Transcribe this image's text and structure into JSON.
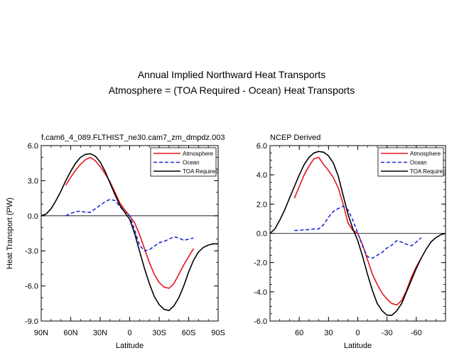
{
  "figure": {
    "title_line1": "Annual Implied Northward Heat Transports",
    "title_line2": "Atmosphere = (TOA Required - Ocean) Heat Transports"
  },
  "chart_data": [
    {
      "type": "line",
      "panel_title": "f.cam6_4_089.FLTHIST_ne30.cam7_zm_dmpdz.003",
      "xlabel": "Latitude",
      "ylabel": "Heat Transport (PW)",
      "xlim": [
        90,
        -90
      ],
      "ylim": [
        -9,
        6
      ],
      "xticks": [
        90,
        60,
        30,
        0,
        -30,
        -60,
        -90
      ],
      "xtick_labels": [
        "90N",
        "60N",
        "30N",
        "0",
        "30S",
        "60S",
        "90S"
      ],
      "yticks": [
        6,
        3,
        0,
        -3,
        -6,
        -9
      ],
      "ytick_labels": [
        "6.0",
        "3.0",
        "0.0",
        "-3.0",
        "-6.0",
        "-9.0"
      ],
      "legend": [
        "Atmosphere",
        "Ocean",
        "TOA Required"
      ],
      "legend_position": "top-right",
      "zero_line": true,
      "series": [
        {
          "name": "Atmosphere",
          "color": "#e8141e",
          "dash": "solid",
          "x": [
            65,
            60,
            55,
            50,
            45,
            40,
            35,
            30,
            25,
            20,
            15,
            10,
            5,
            0,
            -5,
            -10,
            -15,
            -20,
            -25,
            -30,
            -35,
            -40,
            -45,
            -50,
            -55,
            -60,
            -65
          ],
          "y": [
            2.6,
            3.3,
            3.9,
            4.4,
            4.8,
            5.0,
            4.7,
            4.2,
            3.6,
            2.9,
            2.0,
            1.1,
            0.5,
            0.0,
            -0.6,
            -1.6,
            -2.8,
            -4.0,
            -5.0,
            -5.7,
            -6.1,
            -6.2,
            -5.8,
            -5.0,
            -4.2,
            -3.5,
            -2.8
          ]
        },
        {
          "name": "Ocean",
          "color": "#1e2ad8",
          "dash": "dashed",
          "x": [
            65,
            60,
            55,
            50,
            45,
            40,
            35,
            30,
            25,
            20,
            15,
            10,
            5,
            0,
            -5,
            -10,
            -15,
            -20,
            -25,
            -30,
            -35,
            -40,
            -45,
            -50,
            -55,
            -60,
            -65
          ],
          "y": [
            0.0,
            0.2,
            0.35,
            0.4,
            0.3,
            0.3,
            0.6,
            0.9,
            1.2,
            1.4,
            1.3,
            0.8,
            0.3,
            0.0,
            -1.2,
            -2.5,
            -3.0,
            -2.9,
            -2.6,
            -2.3,
            -2.2,
            -2.0,
            -1.8,
            -1.9,
            -2.1,
            -2.0,
            -1.9
          ]
        },
        {
          "name": "TOA Required",
          "color": "#000000",
          "dash": "solid",
          "x": [
            90,
            85,
            80,
            75,
            70,
            65,
            60,
            55,
            50,
            45,
            40,
            35,
            30,
            25,
            20,
            15,
            10,
            5,
            0,
            -5,
            -10,
            -15,
            -20,
            -25,
            -30,
            -35,
            -40,
            -45,
            -50,
            -55,
            -60,
            -65,
            -70,
            -75,
            -80,
            -85,
            -90
          ],
          "y": [
            0.0,
            0.15,
            0.6,
            1.3,
            2.1,
            3.0,
            3.8,
            4.5,
            5.0,
            5.25,
            5.3,
            5.1,
            4.6,
            3.8,
            2.8,
            1.8,
            0.9,
            0.3,
            -0.3,
            -1.5,
            -3.0,
            -4.5,
            -5.8,
            -6.9,
            -7.6,
            -8.0,
            -8.1,
            -7.7,
            -7.0,
            -6.0,
            -4.8,
            -3.8,
            -3.1,
            -2.7,
            -2.5,
            -2.4,
            -2.4
          ]
        }
      ]
    },
    {
      "type": "line",
      "panel_title": "NCEP Derived",
      "xlabel": "Latitude",
      "ylabel": "",
      "xlim": [
        90,
        -90
      ],
      "ylim": [
        -6,
        6
      ],
      "xticks": [
        60,
        30,
        0,
        -30,
        -60
      ],
      "xtick_labels": [
        "60",
        "30",
        "0",
        "-30",
        "-60"
      ],
      "yticks": [
        6,
        4,
        2,
        0,
        -2,
        -4,
        -6
      ],
      "ytick_labels": [
        "6.0",
        "4.0",
        "2.0",
        "0.0",
        "-2.0",
        "-4.0",
        "-6.0"
      ],
      "legend": [
        "Atmosphere",
        "Ocean",
        "TOA Required"
      ],
      "legend_position": "top-right",
      "zero_line": true,
      "series": [
        {
          "name": "Atmosphere",
          "color": "#e8141e",
          "dash": "solid",
          "x": [
            65,
            60,
            55,
            50,
            45,
            40,
            35,
            30,
            25,
            20,
            15,
            10,
            5,
            0,
            -5,
            -10,
            -15,
            -20,
            -25,
            -30,
            -35,
            -40,
            -45,
            -50,
            -55,
            -60,
            -65
          ],
          "y": [
            2.4,
            3.2,
            4.0,
            4.6,
            5.1,
            5.2,
            4.7,
            4.3,
            3.8,
            3.1,
            2.0,
            0.7,
            0.2,
            0.0,
            -0.8,
            -1.8,
            -2.8,
            -3.5,
            -4.1,
            -4.5,
            -4.8,
            -4.9,
            -4.6,
            -3.9,
            -3.0,
            -2.3,
            -1.7
          ]
        },
        {
          "name": "Ocean",
          "color": "#1e2ad8",
          "dash": "dashed",
          "x": [
            65,
            60,
            55,
            50,
            45,
            40,
            35,
            30,
            25,
            20,
            15,
            10,
            5,
            0,
            -5,
            -10,
            -15,
            -20,
            -25,
            -30,
            -35,
            -40,
            -45,
            -50,
            -55,
            -60,
            -65
          ],
          "y": [
            0.2,
            0.2,
            0.25,
            0.25,
            0.3,
            0.3,
            0.6,
            1.1,
            1.5,
            1.7,
            1.85,
            1.6,
            0.9,
            0.0,
            -0.9,
            -1.6,
            -1.7,
            -1.5,
            -1.3,
            -1.0,
            -0.8,
            -0.5,
            -0.6,
            -0.75,
            -0.85,
            -0.6,
            -0.3
          ]
        },
        {
          "name": "TOA Required",
          "color": "#000000",
          "dash": "solid",
          "x": [
            90,
            85,
            80,
            75,
            70,
            65,
            60,
            55,
            50,
            45,
            40,
            35,
            30,
            25,
            20,
            15,
            10,
            5,
            0,
            -5,
            -10,
            -15,
            -20,
            -25,
            -30,
            -35,
            -40,
            -45,
            -50,
            -55,
            -60,
            -65,
            -70,
            -75,
            -80,
            -85,
            -90
          ],
          "y": [
            0.0,
            0.3,
            0.9,
            1.6,
            2.4,
            3.2,
            4.0,
            4.7,
            5.2,
            5.5,
            5.6,
            5.55,
            5.3,
            4.8,
            3.9,
            2.6,
            1.3,
            0.3,
            -0.5,
            -1.6,
            -2.8,
            -3.9,
            -4.8,
            -5.3,
            -5.6,
            -5.6,
            -5.3,
            -4.8,
            -4.0,
            -3.2,
            -2.4,
            -1.7,
            -1.1,
            -0.6,
            -0.3,
            -0.1,
            0.0
          ]
        }
      ]
    }
  ]
}
